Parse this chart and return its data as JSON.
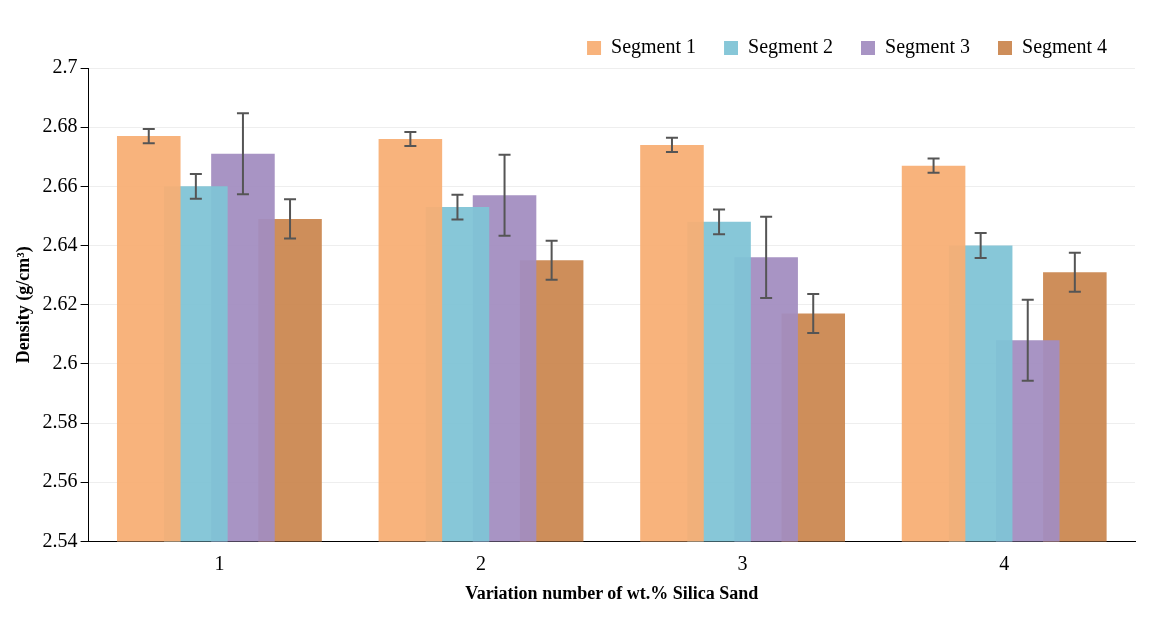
{
  "chart_data": {
    "type": "bar",
    "xlabel": "Variation number of wt.% Silica Sand",
    "ylabel": "Density (g/cm³)",
    "categories": [
      "1",
      "2",
      "3",
      "4"
    ],
    "series": [
      {
        "name": "Segment 1",
        "color": "#f8ae74",
        "values": [
          2.677,
          2.676,
          2.674,
          2.667
        ],
        "errors": [
          0.0024,
          0.0024,
          0.0024,
          0.0024
        ]
      },
      {
        "name": "Segment 2",
        "color": "#7fc4d6",
        "values": [
          2.66,
          2.653,
          2.648,
          2.64
        ],
        "errors": [
          0.0042,
          0.0042,
          0.0042,
          0.0042
        ]
      },
      {
        "name": "Segment 3",
        "color": "#a38dc0",
        "values": [
          2.671,
          2.657,
          2.636,
          2.608
        ],
        "errors": [
          0.0137,
          0.0137,
          0.0137,
          0.0137
        ]
      },
      {
        "name": "Segment 4",
        "color": "#cb8750",
        "values": [
          2.649,
          2.635,
          2.617,
          2.631
        ],
        "errors": [
          0.0066,
          0.0066,
          0.0066,
          0.0066
        ]
      }
    ],
    "ylim": [
      2.54,
      2.7
    ],
    "yticks": [
      2.54,
      2.56,
      2.58,
      2.6,
      2.62,
      2.64,
      2.66,
      2.68,
      2.7
    ],
    "grid": "y",
    "legend": "top right"
  }
}
